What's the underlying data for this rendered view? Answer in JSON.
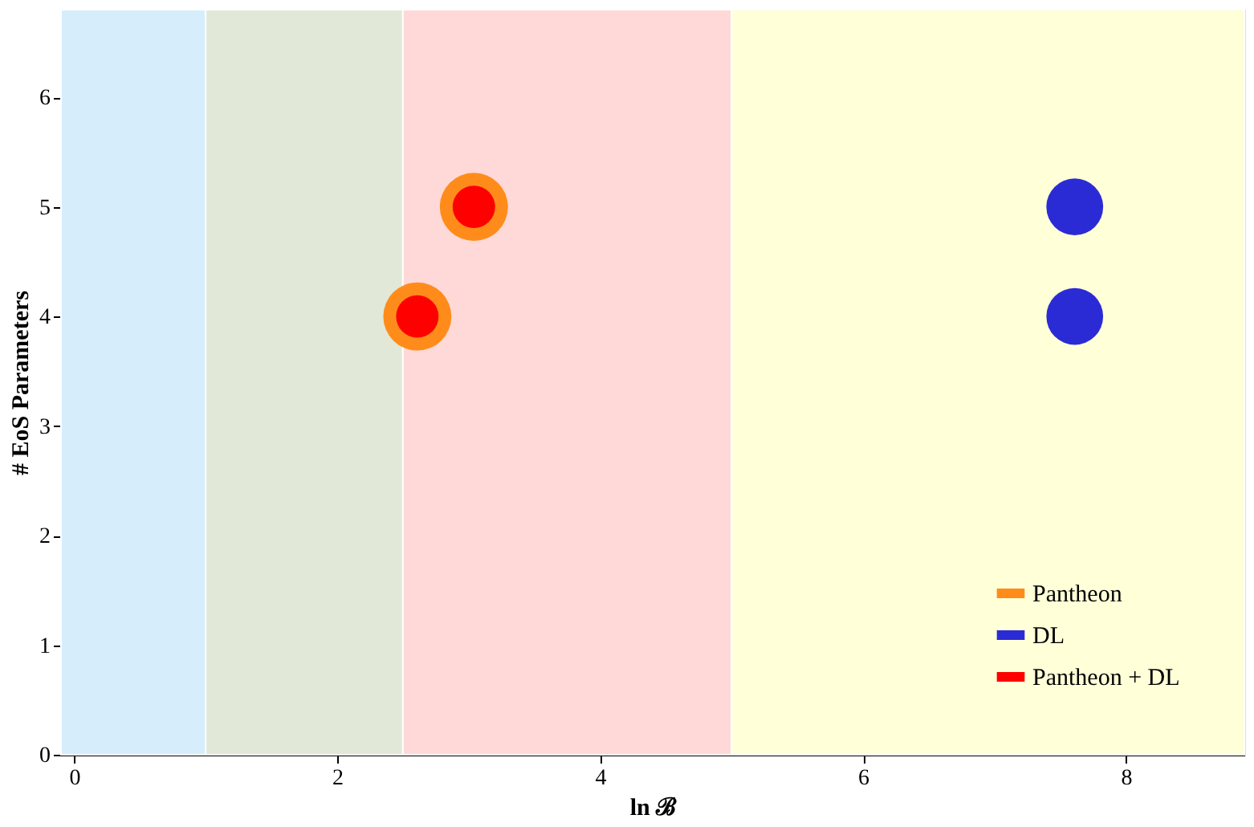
{
  "chart_data": {
    "type": "scatter",
    "xlabel": "ln ℬ",
    "ylabel": "# EoS Parameters",
    "xlim": [
      -0.1,
      8.9
    ],
    "ylim": [
      0,
      6.8
    ],
    "xticks": [
      0,
      2,
      4,
      6,
      8
    ],
    "yticks": [
      0,
      1,
      2,
      3,
      4,
      5,
      6
    ],
    "legend": "bottom right",
    "marker": "circle",
    "bands": [
      {
        "axis": "x",
        "from": -0.1,
        "to": 1.0,
        "color": "#d6eefc"
      },
      {
        "axis": "x",
        "from": 1.0,
        "to": 2.5,
        "color": "#e1e8d8"
      },
      {
        "axis": "x",
        "from": 2.5,
        "to": 5.0,
        "color": "#ffd8d8"
      },
      {
        "axis": "x",
        "from": 5.0,
        "to": 8.9,
        "color": "#ffffd8"
      }
    ],
    "series": [
      {
        "name": "Pantheon",
        "color": "#ff8c1a",
        "x": [
          2.61,
          3.04
        ],
        "values": [
          4,
          5
        ]
      },
      {
        "name": "DL",
        "color": "#2b2bd6",
        "x": [
          7.61,
          7.61
        ],
        "values": [
          5,
          4
        ]
      },
      {
        "name": "Pantheon + DL",
        "color": "#ff0000",
        "x": [
          2.61,
          3.04
        ],
        "values": [
          4,
          5
        ]
      }
    ]
  }
}
